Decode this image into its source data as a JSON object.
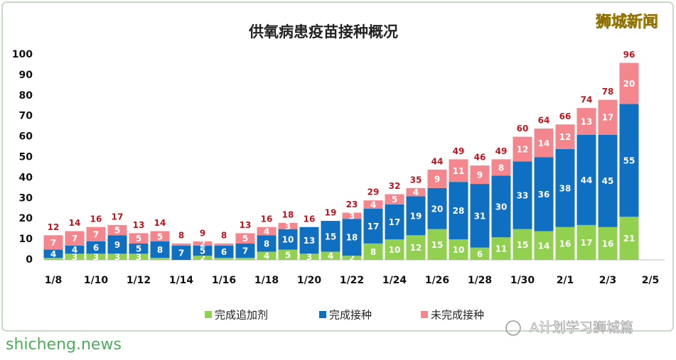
{
  "chart_data": {
    "type": "bar",
    "stacked": true,
    "title": "供氧病患疫苗接种概况",
    "categories": [
      "1/8",
      null,
      "1/10",
      null,
      "1/12",
      null,
      "1/14",
      null,
      "1/16",
      null,
      "1/18",
      null,
      "1/20",
      null,
      "1/22",
      null,
      "1/24",
      null,
      "1/26",
      null,
      "1/28",
      null,
      "1/30",
      null,
      "2/1",
      null,
      "2/3",
      null,
      "2/5"
    ],
    "series": [
      {
        "name": "完成追加剂",
        "color": "#92d050",
        "values": [
          1,
          3,
          3,
          3,
          3,
          1,
          0,
          2,
          1,
          1,
          4,
          5,
          3,
          4,
          2,
          8,
          10,
          12,
          15,
          10,
          6,
          11,
          15,
          14,
          16,
          17,
          16,
          21,
          null
        ]
      },
      {
        "name": "完成接种",
        "color": "#0f6fc0",
        "values": [
          4,
          4,
          6,
          9,
          5,
          8,
          7,
          5,
          6,
          7,
          8,
          10,
          13,
          15,
          18,
          17,
          17,
          19,
          20,
          28,
          31,
          30,
          33,
          36,
          38,
          44,
          45,
          55,
          null
        ]
      },
      {
        "name": "未完成接种",
        "color": "#f4868e",
        "values": [
          7,
          7,
          7,
          5,
          5,
          5,
          1,
          2,
          1,
          5,
          4,
          3,
          0,
          0,
          3,
          4,
          5,
          4,
          9,
          11,
          9,
          8,
          12,
          14,
          12,
          13,
          17,
          20,
          null
        ]
      }
    ],
    "totals": [
      12,
      14,
      16,
      17,
      13,
      14,
      8,
      9,
      8,
      13,
      16,
      18,
      16,
      19,
      23,
      29,
      32,
      35,
      44,
      49,
      46,
      49,
      60,
      64,
      66,
      74,
      78,
      96,
      null
    ],
    "ylim": [
      0,
      100
    ],
    "yticks": [
      0,
      10,
      20,
      30,
      40,
      50,
      60,
      70,
      80,
      90,
      100
    ],
    "grid": false
  },
  "watermark": "狮城新闻",
  "site": "shicheng.news",
  "account": "A计划学习狮城篇"
}
